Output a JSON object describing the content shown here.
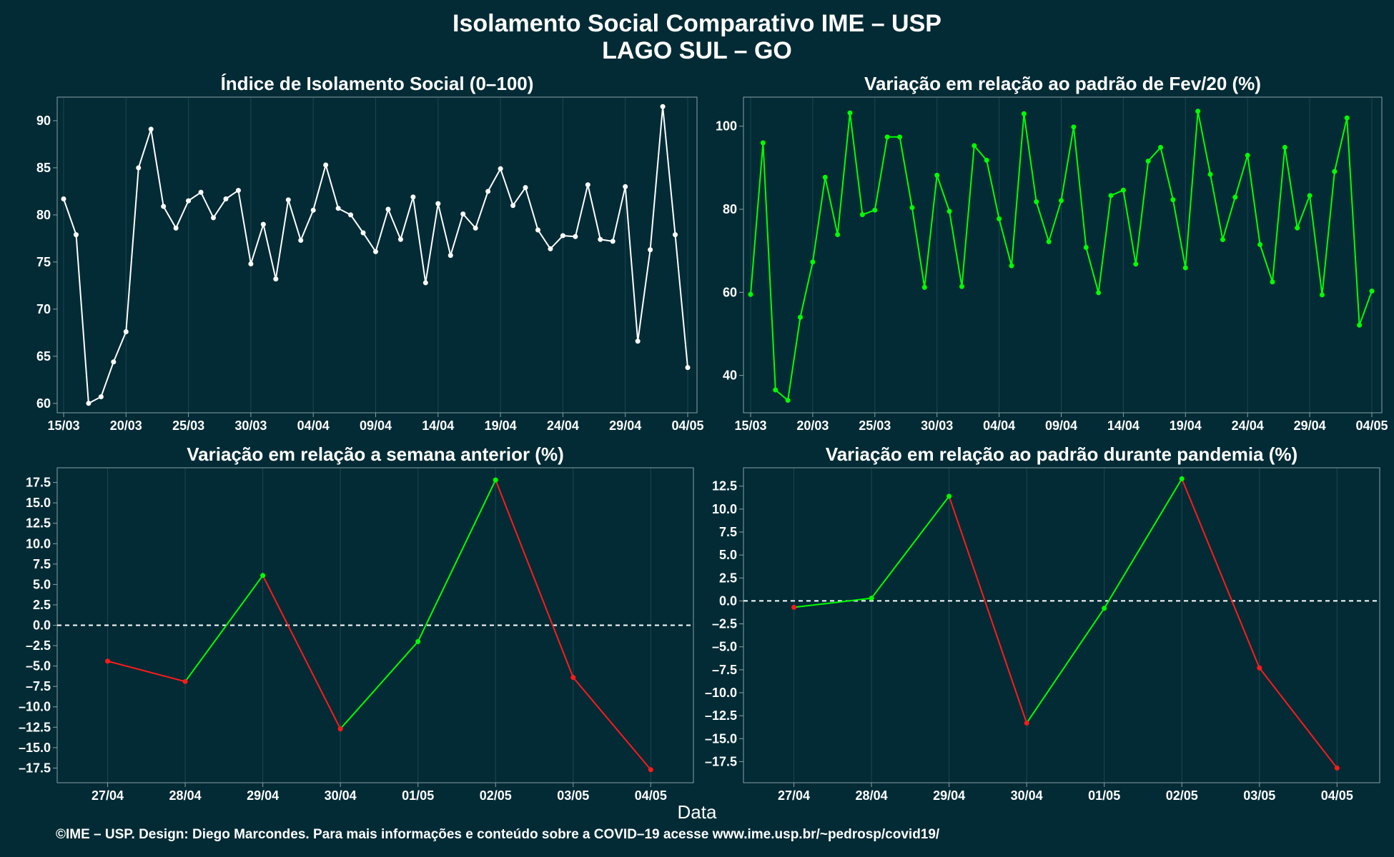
{
  "header": {
    "title": "Isolamento Social Comparativo IME – USP",
    "subtitle": "LAGO SUL – GO"
  },
  "footer": "©IME – USP. Design: Diego Marcondes. Para mais informações e conteúdo sobre a COVID–19 acesse www.ime.usp.br/~pedrosp/covid19/",
  "xlabel": "Data",
  "colors": {
    "background": "#022b35",
    "white_line": "#ffffff",
    "green_line": "#00ff00",
    "red_line": "#ff1a1a",
    "grid": "#1f4550",
    "frame": "#8aa0a6"
  },
  "chart_data": [
    {
      "type": "line",
      "title": "Índice de Isolamento Social (0–100)",
      "color": "white",
      "x": [
        "15/03",
        "16/03",
        "17/03",
        "18/03",
        "19/03",
        "20/03",
        "21/03",
        "22/03",
        "23/03",
        "24/03",
        "25/03",
        "26/03",
        "27/03",
        "28/03",
        "29/03",
        "30/03",
        "31/03",
        "01/04",
        "02/04",
        "03/04",
        "04/04",
        "05/04",
        "06/04",
        "07/04",
        "08/04",
        "09/04",
        "10/04",
        "11/04",
        "12/04",
        "13/04",
        "14/04",
        "15/04",
        "16/04",
        "17/04",
        "18/04",
        "19/04",
        "20/04",
        "21/04",
        "22/04",
        "23/04",
        "24/04",
        "25/04",
        "26/04",
        "27/04",
        "28/04",
        "29/04",
        "30/04",
        "01/05",
        "02/05",
        "03/05",
        "04/05"
      ],
      "values": [
        81.7,
        77.9,
        60.0,
        60.7,
        64.4,
        67.6,
        85.0,
        89.1,
        80.9,
        78.6,
        81.5,
        82.4,
        79.7,
        81.7,
        82.6,
        74.8,
        79.0,
        73.2,
        81.6,
        77.3,
        80.5,
        85.3,
        80.7,
        80.0,
        78.1,
        76.1,
        80.6,
        77.4,
        81.9,
        72.8,
        81.2,
        75.7,
        80.1,
        78.6,
        82.5,
        84.9,
        81.0,
        82.9,
        78.4,
        76.4,
        77.8,
        77.7,
        83.2,
        77.4,
        77.2,
        83.0,
        66.6,
        76.3,
        91.5,
        77.9,
        63.8
      ],
      "ylim": [
        59,
        92.5
      ],
      "yticks": [
        60,
        65,
        70,
        75,
        80,
        85,
        90
      ],
      "xtick_labels": [
        "15/03",
        "20/03",
        "25/03",
        "30/03",
        "04/04",
        "09/04",
        "14/04",
        "19/04",
        "24/04",
        "29/04",
        "04/05"
      ]
    },
    {
      "type": "line",
      "title": "Variação em relação ao padrão de Fev/20 (%)",
      "color": "green",
      "x": [
        "15/03",
        "16/03",
        "17/03",
        "18/03",
        "19/03",
        "20/03",
        "21/03",
        "22/03",
        "23/03",
        "24/03",
        "25/03",
        "26/03",
        "27/03",
        "28/03",
        "29/03",
        "30/03",
        "31/03",
        "01/04",
        "02/04",
        "03/04",
        "04/04",
        "05/04",
        "06/04",
        "07/04",
        "08/04",
        "09/04",
        "10/04",
        "11/04",
        "12/04",
        "13/04",
        "14/04",
        "15/04",
        "16/04",
        "17/04",
        "18/04",
        "19/04",
        "20/04",
        "21/04",
        "22/04",
        "23/04",
        "24/04",
        "25/04",
        "26/04",
        "27/04",
        "28/04",
        "29/04",
        "30/04",
        "01/05",
        "02/05",
        "03/05",
        "04/05"
      ],
      "values": [
        59.5,
        96.0,
        36.5,
        34.0,
        54.0,
        67.3,
        87.7,
        73.9,
        103.2,
        78.7,
        79.8,
        97.4,
        97.4,
        80.4,
        61.2,
        88.2,
        79.5,
        61.4,
        95.3,
        91.8,
        77.7,
        66.4,
        103.0,
        81.8,
        72.2,
        82.1,
        99.8,
        70.8,
        59.9,
        83.3,
        84.6,
        66.8,
        91.6,
        94.9,
        82.3,
        65.9,
        103.6,
        88.4,
        72.7,
        82.9,
        93.0,
        71.5,
        62.5,
        94.9,
        75.5,
        83.3,
        59.4,
        89.1,
        102.0,
        52.1,
        60.3
      ],
      "ylim": [
        31,
        107
      ],
      "yticks": [
        40,
        60,
        80,
        100
      ],
      "xtick_labels": [
        "15/03",
        "20/03",
        "25/03",
        "30/03",
        "04/04",
        "09/04",
        "14/04",
        "19/04",
        "24/04",
        "29/04",
        "04/05"
      ]
    },
    {
      "type": "line",
      "title": "Variação em relação a semana anterior (%)",
      "color": "green-positive-red-negative",
      "x": [
        "27/04",
        "28/04",
        "29/04",
        "30/04",
        "01/05",
        "02/05",
        "03/05",
        "04/05"
      ],
      "values": [
        -4.4,
        -6.9,
        6.1,
        -12.7,
        -2.0,
        17.8,
        -6.4,
        -17.7
      ],
      "ylim": [
        -19.3,
        19.3
      ],
      "yticks": [
        -17.5,
        -15.0,
        -12.5,
        -10.0,
        -7.5,
        -5.0,
        -2.5,
        0.0,
        2.5,
        5.0,
        7.5,
        10.0,
        12.5,
        15.0,
        17.5
      ],
      "reference_line": 0
    },
    {
      "type": "line",
      "title": "Variação em relação ao padrão durante pandemia (%)",
      "color": "green-positive-red-negative",
      "x": [
        "27/04",
        "28/04",
        "29/04",
        "30/04",
        "01/05",
        "02/05",
        "03/05",
        "04/05"
      ],
      "values": [
        -0.7,
        0.3,
        11.4,
        -13.3,
        -0.8,
        13.3,
        -7.3,
        -18.2
      ],
      "ylim": [
        -19.8,
        14.5
      ],
      "yticks": [
        -17.5,
        -15.0,
        -12.5,
        -10.0,
        -7.5,
        -5.0,
        -2.5,
        0.0,
        2.5,
        5.0,
        7.5,
        10.0,
        12.5
      ],
      "reference_line": 0
    }
  ]
}
